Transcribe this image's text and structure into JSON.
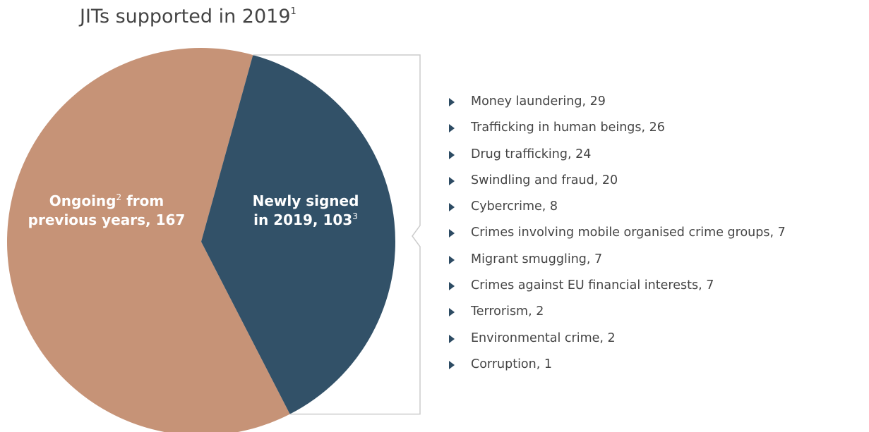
{
  "title": {
    "text": "JITs supported in 2019",
    "sup": "1"
  },
  "colors": {
    "ongoing": "#c69377",
    "new": "#325168",
    "bracket": "#cccccc",
    "arrow": "#2d4b63"
  },
  "chart_data": {
    "type": "pie",
    "title": "JITs supported in 2019",
    "slices": [
      {
        "id": "ongoing",
        "label_lines": [
          "Ongoing",
          "from",
          "previous years, 167"
        ],
        "sup": "2",
        "value": 167
      },
      {
        "id": "new",
        "label_lines": [
          "Newly signed",
          "in 2019, 103",
          ""
        ],
        "sup": "3",
        "value": 103
      }
    ],
    "breakdown_of": "new",
    "breakdown": [
      {
        "label": "Money laundering",
        "value": 29
      },
      {
        "label": "Trafficking in human beings",
        "value": 26
      },
      {
        "label": "Drug trafficking",
        "value": 24
      },
      {
        "label": "Swindling and fraud",
        "value": 20
      },
      {
        "label": "Cybercrime",
        "value": 8
      },
      {
        "label": "Crimes involving mobile organised crime groups",
        "value": 7
      },
      {
        "label": "Migrant smuggling",
        "value": 7
      },
      {
        "label": "Crimes against EU financial interests",
        "value": 7
      },
      {
        "label": "Terrorism",
        "value": 2
      },
      {
        "label": "Environmental crime",
        "value": 2
      },
      {
        "label": "Corruption",
        "value": 1
      }
    ]
  }
}
